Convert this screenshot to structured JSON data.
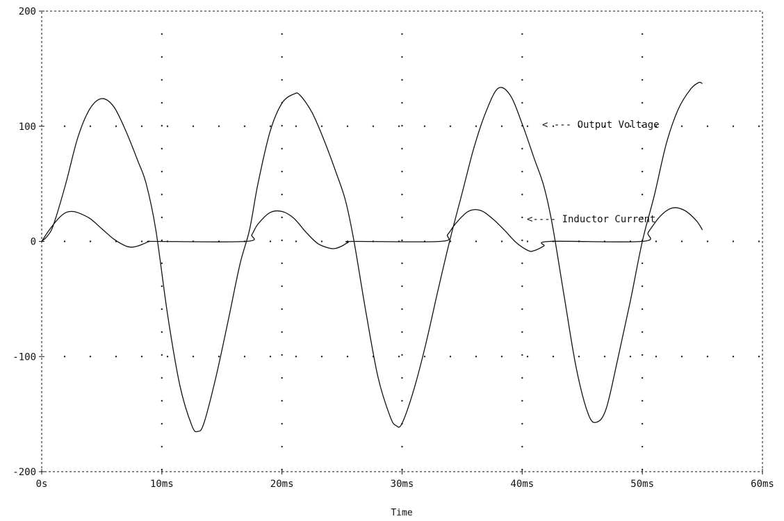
{
  "chart_data": {
    "type": "line",
    "xlabel": "Time",
    "x_ticks": [
      "0s",
      "10ms",
      "20ms",
      "30ms",
      "40ms",
      "50ms",
      "60ms"
    ],
    "y_ticks": [
      "200",
      "100",
      "0",
      "-100",
      "-200"
    ],
    "xlim_ms": [
      0,
      60
    ],
    "ylim": [
      -200,
      200
    ],
    "grid": "dotted",
    "series": [
      {
        "name": "Output Voltage",
        "annotation": "< --- Output Voltage",
        "x_ms": [
          0,
          0.5,
          1,
          2,
          3,
          4,
          5,
          6,
          7,
          8,
          8.7,
          9.5,
          10.5,
          11.5,
          12.5,
          13,
          13.5,
          14.5,
          15.5,
          16.5,
          17.3,
          18,
          19,
          20,
          21,
          21.5,
          22.5,
          23.5,
          24.5,
          25.3,
          26,
          27,
          28,
          29,
          29.5,
          30,
          31,
          32,
          33,
          34,
          35,
          36,
          37,
          38,
          39,
          40,
          41,
          41.8,
          42.5,
          43.5,
          44.5,
          45.5,
          46.2,
          47,
          48,
          49,
          50,
          51,
          52,
          53,
          54,
          54.7,
          55
        ],
        "y": [
          0,
          5,
          15,
          50,
          90,
          115,
          124,
          117,
          96,
          70,
          50,
          10,
          -65,
          -125,
          -160,
          -165,
          -158,
          -118,
          -70,
          -20,
          10,
          50,
          95,
          120,
          128,
          127,
          112,
          88,
          60,
          35,
          0,
          -62,
          -118,
          -152,
          -160,
          -158,
          -128,
          -88,
          -42,
          2,
          42,
          82,
          113,
          133,
          127,
          102,
          72,
          48,
          15,
          -48,
          -110,
          -150,
          -157,
          -145,
          -100,
          -52,
          0,
          40,
          85,
          115,
          132,
          138,
          137
        ]
      },
      {
        "name": "Inductor Current",
        "annotation": "<---- Inductor Current",
        "x_ms": [
          0,
          0.5,
          1,
          1.5,
          2,
          2.5,
          3,
          4,
          5,
          6,
          7,
          7.5,
          8,
          8.5,
          9,
          9.5,
          17,
          17.5,
          18,
          19,
          20,
          21,
          22,
          23,
          24,
          24.5,
          25,
          25.5,
          26,
          33.2,
          33.8,
          34.5,
          35.5,
          36.5,
          37.5,
          38.5,
          39.5,
          40.5,
          41,
          41.8,
          42.3,
          50,
          50.5,
          51.5,
          52.5,
          53.5,
          54.5,
          55
        ],
        "y": [
          0,
          8,
          15,
          21,
          25,
          26,
          25,
          20,
          11,
          2,
          -4,
          -5,
          -4,
          -2,
          0,
          0,
          0,
          6,
          15,
          25,
          26,
          20,
          8,
          -2,
          -6,
          -6,
          -4,
          -1,
          0,
          0,
          6,
          16,
          26,
          27,
          20,
          10,
          -1,
          -8,
          -8,
          -4,
          0,
          0,
          8,
          22,
          29,
          27,
          18,
          10
        ]
      }
    ]
  }
}
